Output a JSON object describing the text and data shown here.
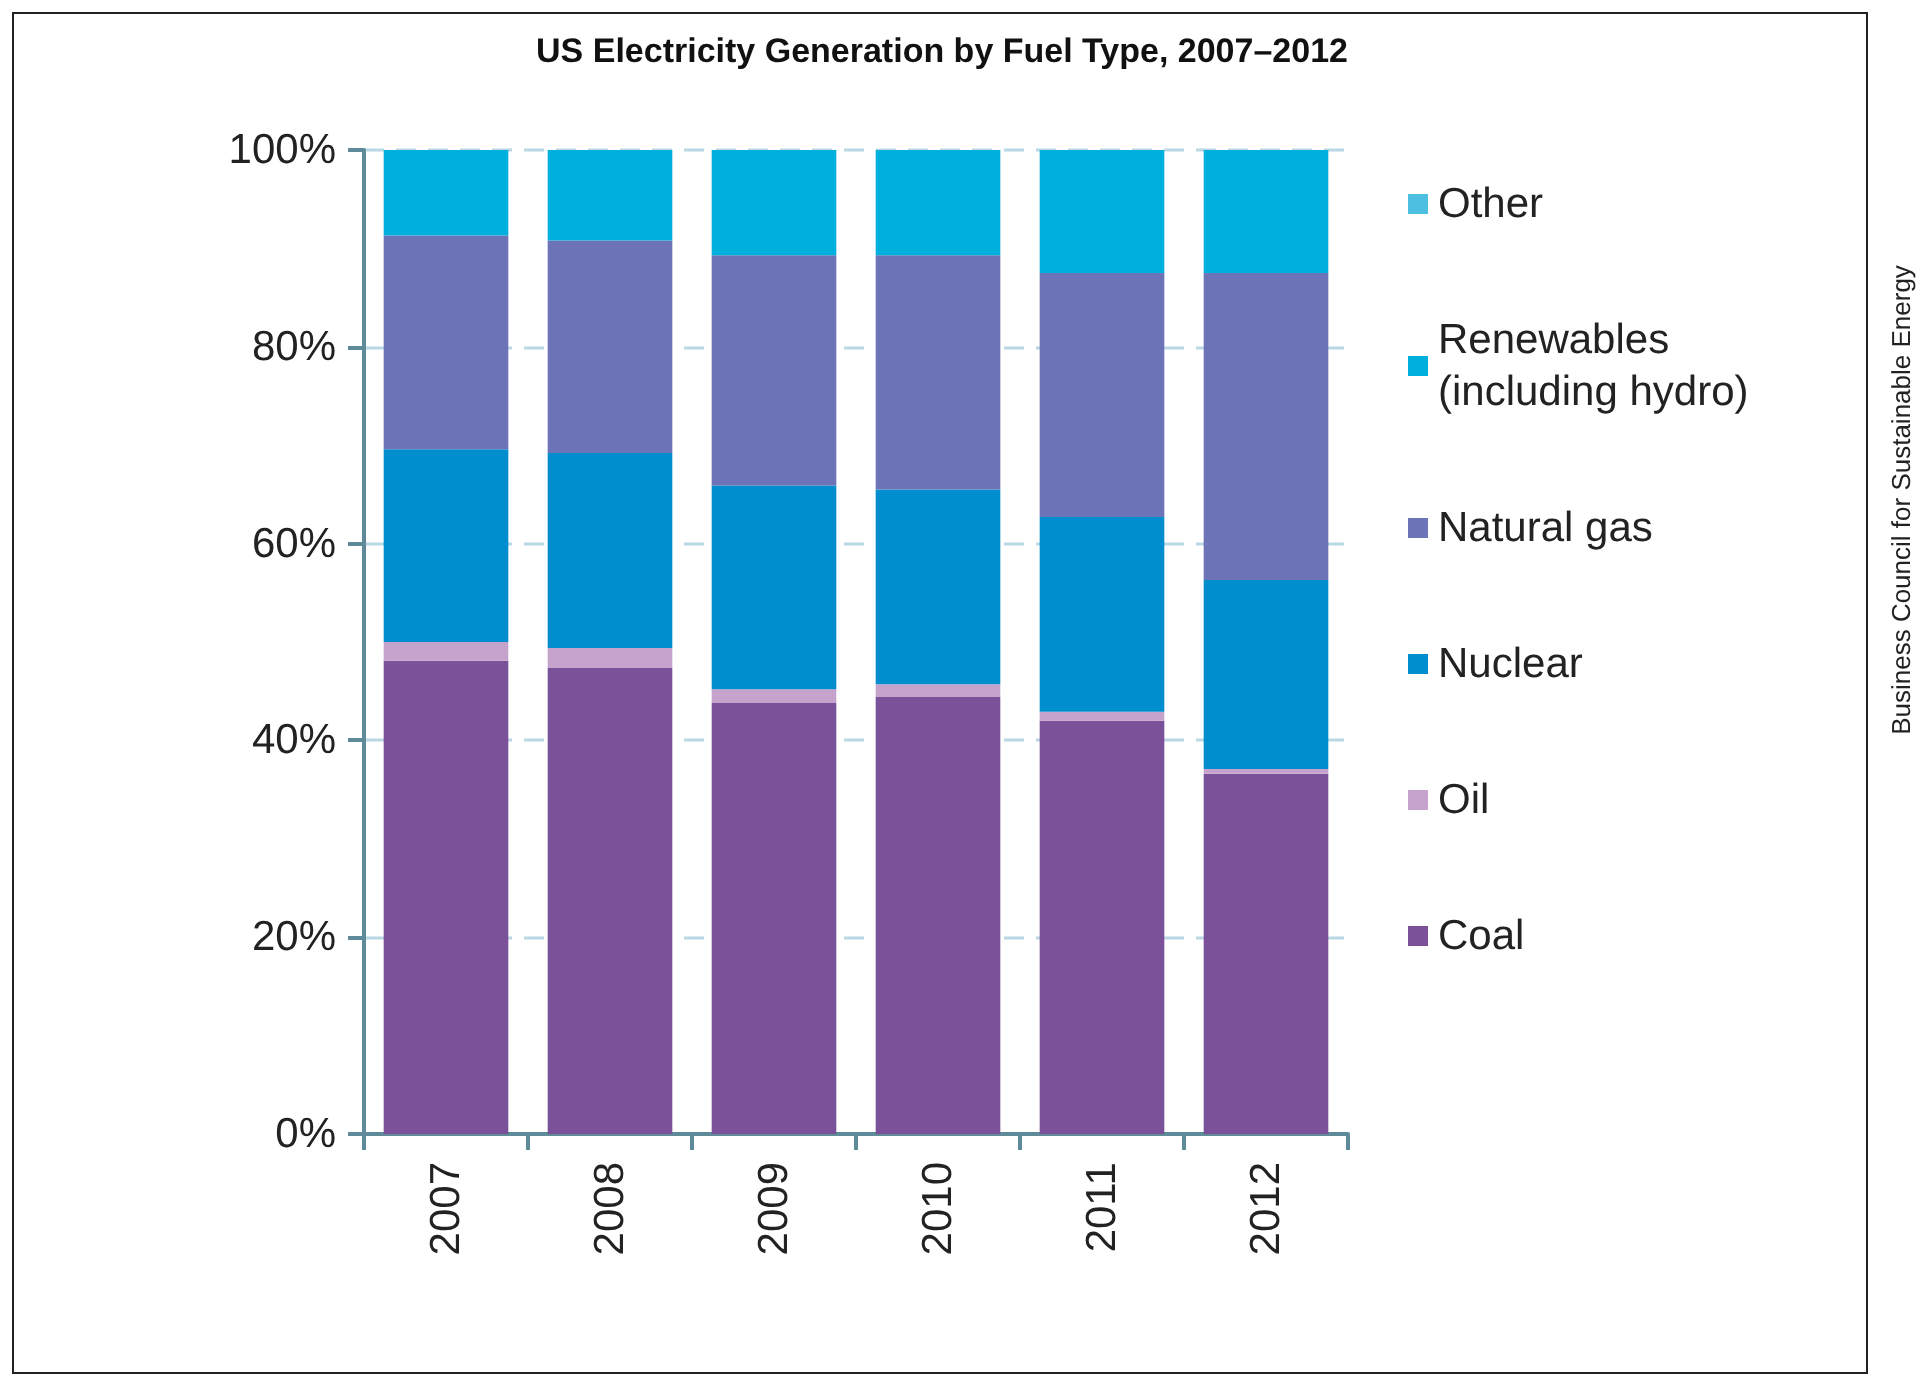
{
  "chart_data": {
    "type": "bar",
    "title": "US Electricity Generation by Fuel Type, 2007–2012",
    "categories": [
      "2007",
      "2008",
      "2009",
      "2010",
      "2011",
      "2012"
    ],
    "stacked": true,
    "series": [
      {
        "name": "Coal",
        "color": "#7b5299",
        "values": [
          48.1,
          47.4,
          43.8,
          44.4,
          42.0,
          36.6
        ]
      },
      {
        "name": "Oil",
        "color": "#c6a3cc",
        "values": [
          1.9,
          2.0,
          1.4,
          1.3,
          0.9,
          0.5
        ]
      },
      {
        "name": "Nuclear",
        "color": "#008ecf",
        "values": [
          19.6,
          19.8,
          20.7,
          19.8,
          19.8,
          19.2
        ]
      },
      {
        "name": "Natural gas",
        "color": "#6c73b6",
        "values": [
          21.7,
          21.6,
          23.4,
          23.8,
          24.8,
          31.2
        ]
      },
      {
        "name": "Renewables (including hydro)",
        "color": "#00b0dc",
        "values": [
          8.7,
          9.2,
          10.7,
          10.7,
          12.5,
          12.5
        ]
      },
      {
        "name": "Other",
        "color": "#4dc0e2",
        "values": [
          0,
          0,
          0,
          0,
          0,
          0
        ]
      }
    ],
    "ylim": [
      0,
      100
    ],
    "yticks": [
      {
        "value": 0,
        "label": "0%"
      },
      {
        "value": 20,
        "label": "20%"
      },
      {
        "value": 40,
        "label": "40%"
      },
      {
        "value": 60,
        "label": "60%"
      },
      {
        "value": 80,
        "label": "80%"
      },
      {
        "value": 100,
        "label": "100%"
      }
    ],
    "grid": "y",
    "legend": "right",
    "annotations": [
      "Business Council for Sustainable Energy"
    ]
  }
}
